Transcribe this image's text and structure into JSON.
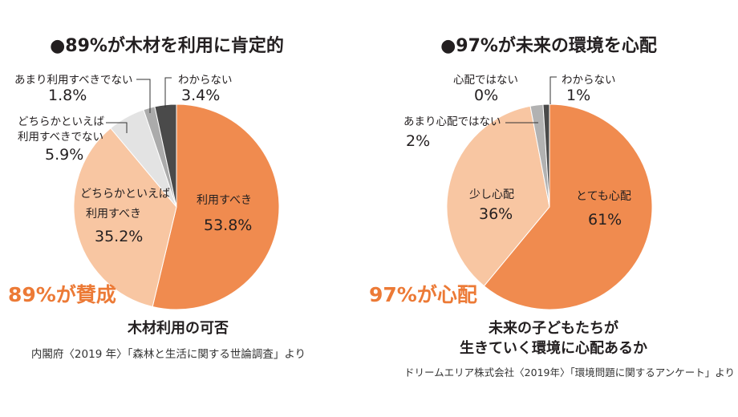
{
  "colors": {
    "highlight": "#EC7A36"
  },
  "chart_data": [
    {
      "type": "pie",
      "title": "●89%が木材を利用に肯定的",
      "highlight": "89%が賛成",
      "caption_lines": [
        "木材利用の可否"
      ],
      "source": "内閣府〈2019 年〉「森林と生活に関する世論調査」より",
      "slices": [
        {
          "label_lines": [
            "利用すべき"
          ],
          "value": 53.8,
          "value_label": "53.8%",
          "color": "#F08B4F"
        },
        {
          "label_lines": [
            "どちらかといえば",
            "利用すべき"
          ],
          "value": 35.2,
          "value_label": "35.2%",
          "color": "#F8C6A2"
        },
        {
          "label_lines": [
            "どちらかといえば",
            "利用すべきでない"
          ],
          "value": 5.9,
          "value_label": "5.9%",
          "color": "#E3E3E3"
        },
        {
          "label_lines": [
            "あまり利用すべきでない"
          ],
          "value": 1.8,
          "value_label": "1.8%",
          "color": "#ABABAB"
        },
        {
          "label_lines": [
            "わからない"
          ],
          "value": 3.4,
          "value_label": "3.4%",
          "color": "#4A4A4A"
        }
      ]
    },
    {
      "type": "pie",
      "title": "●97%が未来の環境を心配",
      "highlight": "97%が心配",
      "caption_lines": [
        "未来の子どもたちが",
        "生きていく環境に心配あるか"
      ],
      "source": "ドリームエリア株式会社〈2019年〉「環境問題に関するアンケート」より",
      "slices": [
        {
          "label_lines": [
            "とても心配"
          ],
          "value": 61,
          "value_label": "61%",
          "color": "#F08B4F"
        },
        {
          "label_lines": [
            "少し心配"
          ],
          "value": 36,
          "value_label": "36%",
          "color": "#F8C6A2"
        },
        {
          "label_lines": [
            "あまり心配ではない"
          ],
          "value": 2,
          "value_label": "2%",
          "color": "#B2B2B2"
        },
        {
          "label_lines": [
            "心配ではない"
          ],
          "value": 0,
          "value_label": "0%"
        },
        {
          "label_lines": [
            "わからない"
          ],
          "value": 1,
          "value_label": "1%",
          "color": "#4A4A4A"
        }
      ]
    }
  ]
}
